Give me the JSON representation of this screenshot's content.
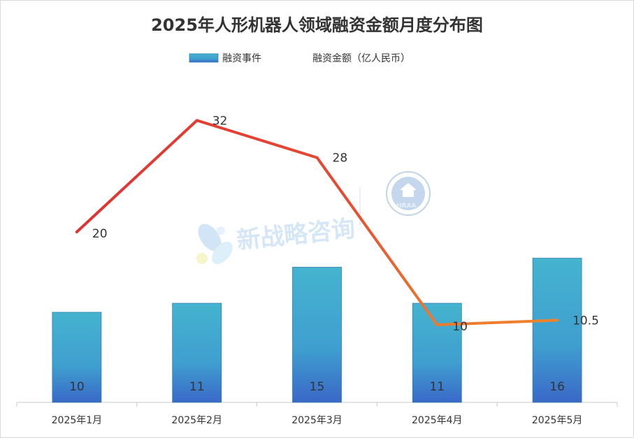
{
  "chart_data": {
    "type": "bar",
    "title": "2025年人形机器人领域融资金额月度分布图",
    "categories": [
      "2025年1月",
      "2025年2月",
      "2025年3月",
      "2025年4月",
      "2025年5月"
    ],
    "series": [
      {
        "name": "融资事件",
        "type": "bar",
        "values": [
          10,
          11,
          15,
          11,
          16
        ],
        "labels": [
          "10",
          "11",
          "15",
          "11",
          "16"
        ],
        "color": "#3fa9c9"
      },
      {
        "name": "融资金额（亿人民币）",
        "type": "line",
        "values": [
          20,
          32,
          28,
          10,
          10.5
        ],
        "labels": [
          "20",
          "32",
          "28",
          "10",
          "10.5"
        ],
        "color": "#e03c31"
      }
    ],
    "legend_position": "top",
    "grid": false
  },
  "watermark": {
    "text": "新战略咨询",
    "badge_text": "HRAA"
  }
}
